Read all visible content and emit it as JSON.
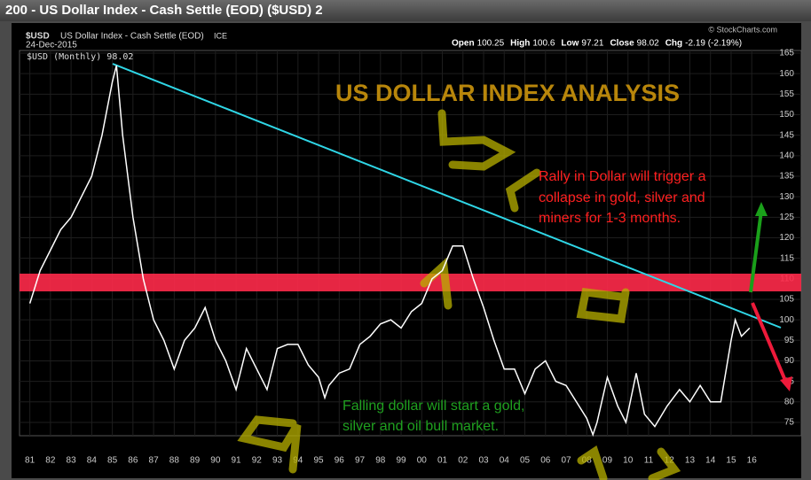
{
  "chart_data": {
    "type": "line",
    "window_title": "200 - US Dollar Index - Cash Settle (EOD) ($USD) 2",
    "watermark": "© StockCharts.com",
    "symbol": "$USD",
    "instrument": "US Dollar Index - Cash Settle (EOD)",
    "exchange": "ICE",
    "date": "24-Dec-2015",
    "stats": [
      {
        "label": "Open",
        "value": 100.25
      },
      {
        "label": "High",
        "value": 100.6
      },
      {
        "label": "Low",
        "value": 97.21
      },
      {
        "label": "Close",
        "value": 98.02
      },
      {
        "label": "Chg",
        "value": "-2.19 (-2.19%)"
      }
    ],
    "legend_label": "$USD (Monthly) 98.02",
    "title": "US DOLLAR INDEX ANALYSIS",
    "annotation_red": [
      "Rally in Dollar will trigger a",
      "collapse in gold, silver and",
      "miners for 1-3 months."
    ],
    "annotation_green": [
      "Falling dollar will start a gold,",
      "silver and oil bull market."
    ],
    "x": [
      1981.0,
      1981.5,
      1982.0,
      1982.5,
      1983.0,
      1983.5,
      1984.0,
      1984.5,
      1985.0,
      1985.2,
      1985.5,
      1986.0,
      1986.5,
      1987.0,
      1987.5,
      1988.0,
      1988.5,
      1989.0,
      1989.5,
      1990.0,
      1990.5,
      1991.0,
      1991.5,
      1992.0,
      1992.5,
      1993.0,
      1993.5,
      1994.0,
      1994.5,
      1995.0,
      1995.3,
      1995.5,
      1996.0,
      1996.5,
      1997.0,
      1997.5,
      1998.0,
      1998.5,
      1999.0,
      1999.5,
      2000.0,
      2000.5,
      2001.0,
      2001.5,
      2002.0,
      2002.5,
      2003.0,
      2003.5,
      2004.0,
      2004.5,
      2005.0,
      2005.5,
      2006.0,
      2006.5,
      2007.0,
      2007.5,
      2008.0,
      2008.3,
      2008.5,
      2009.0,
      2009.5,
      2009.9,
      2010.4,
      2010.8,
      2011.3,
      2011.9,
      2012.5,
      2013.0,
      2013.5,
      2014.0,
      2014.5,
      2015.0,
      2015.2,
      2015.5,
      2015.9
    ],
    "values": [
      104,
      112,
      117,
      122,
      125,
      130,
      135,
      145,
      158,
      162,
      145,
      125,
      110,
      100,
      95,
      88,
      95,
      98,
      103,
      95,
      90,
      83,
      93,
      88,
      83,
      93,
      94,
      94,
      89,
      86,
      81,
      84,
      87,
      88,
      94,
      96,
      99,
      100,
      98,
      102,
      104,
      110,
      112,
      118,
      118,
      110,
      103,
      95,
      88,
      88,
      82,
      88,
      90,
      85,
      84,
      80,
      76,
      72,
      75,
      86,
      79,
      75,
      87,
      77,
      74,
      79,
      83,
      80,
      84,
      80,
      80,
      95,
      100,
      96,
      98
    ],
    "color": "#ffffff",
    "xlim": [
      1980.5,
      2018.4
    ],
    "ylim": [
      71.75,
      165.65
    ],
    "xticks": [
      {
        "value": 1981,
        "label": "81"
      },
      {
        "value": 1982,
        "label": "82"
      },
      {
        "value": 1983,
        "label": "83"
      },
      {
        "value": 1984,
        "label": "84"
      },
      {
        "value": 1985,
        "label": "85"
      },
      {
        "value": 1986,
        "label": "86"
      },
      {
        "value": 1987,
        "label": "87"
      },
      {
        "value": 1988,
        "label": "88"
      },
      {
        "value": 1989,
        "label": "89"
      },
      {
        "value": 1990,
        "label": "90"
      },
      {
        "value": 1991,
        "label": "91"
      },
      {
        "value": 1992,
        "label": "92"
      },
      {
        "value": 1993,
        "label": "93"
      },
      {
        "value": 1994,
        "label": "94"
      },
      {
        "value": 1995,
        "label": "95"
      },
      {
        "value": 1996,
        "label": "96"
      },
      {
        "value": 1997,
        "label": "97"
      },
      {
        "value": 1998,
        "label": "98"
      },
      {
        "value": 1999,
        "label": "99"
      },
      {
        "value": 2000,
        "label": "00"
      },
      {
        "value": 2001,
        "label": "01"
      },
      {
        "value": 2002,
        "label": "02"
      },
      {
        "value": 2003,
        "label": "03"
      },
      {
        "value": 2004,
        "label": "04"
      },
      {
        "value": 2005,
        "label": "05"
      },
      {
        "value": 2006,
        "label": "06"
      },
      {
        "value": 2007,
        "label": "07"
      },
      {
        "value": 2008,
        "label": "08"
      },
      {
        "value": 2009,
        "label": "09"
      },
      {
        "value": 2010,
        "label": "10"
      },
      {
        "value": 2011,
        "label": "11"
      },
      {
        "value": 2012,
        "label": "12"
      },
      {
        "value": 2013,
        "label": "13"
      },
      {
        "value": 2014,
        "label": "14"
      },
      {
        "value": 2015,
        "label": "15"
      },
      {
        "value": 2016,
        "label": "16"
      }
    ],
    "yticks": [
      75,
      80,
      85,
      90,
      95,
      100,
      105,
      110,
      115,
      120,
      125,
      130,
      135,
      140,
      145,
      150,
      155,
      160,
      165
    ],
    "grid": true
  }
}
